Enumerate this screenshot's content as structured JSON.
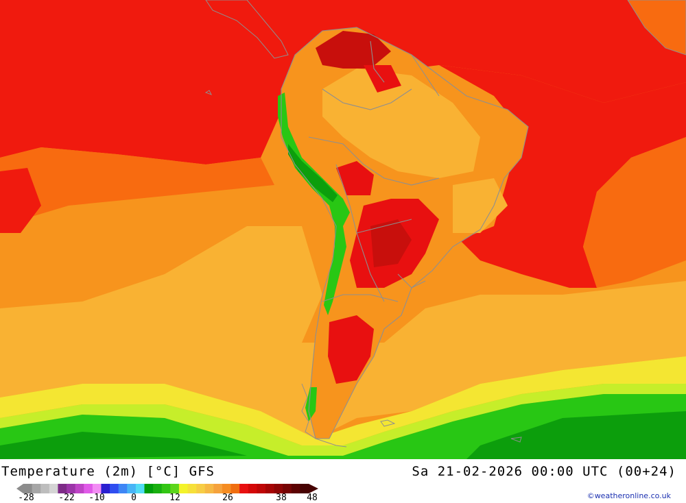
{
  "header": {
    "title": "Temperature (2m) [°C] GFS",
    "valid_time": "Sa 21-02-2026 00:00 UTC (00+24)"
  },
  "legend": {
    "ticks": [
      "-28",
      "-22",
      "-10",
      "0",
      "12",
      "26",
      "38",
      "48"
    ],
    "colors": [
      "#8c8c8c",
      "#a6a6a6",
      "#bdbdbd",
      "#d4d4d4",
      "#7d2b87",
      "#9b35a8",
      "#be44c6",
      "#e05ae8",
      "#f28cf4",
      "#2a1fd0",
      "#2f4ef0",
      "#3e86f5",
      "#48b4f6",
      "#52dcf5",
      "#009e0a",
      "#19b010",
      "#33c614",
      "#5cd61c",
      "#f3f32a",
      "#f6e03a",
      "#f7cd45",
      "#f6b844",
      "#f5a23c",
      "#f58c22",
      "#f06e10",
      "#e81010",
      "#d40808",
      "#bf0606",
      "#a60404",
      "#8e0404",
      "#760404",
      "#5c0303",
      "#460202"
    ],
    "unit": "°C"
  },
  "credit": "©weatheronline.co.uk",
  "map": {
    "region": "South America",
    "field_colors": {
      "hot_red": "#f01a0e",
      "dark_red": "#c80f0c",
      "orange_red": "#f86b10",
      "orange": "#f7941d",
      "light_orange": "#f9b233",
      "yellow": "#f4e632",
      "yellow_green": "#c6ee2a",
      "green": "#28c714",
      "dark_green": "#0c9e0c",
      "borders": "#8f8f8f"
    }
  }
}
